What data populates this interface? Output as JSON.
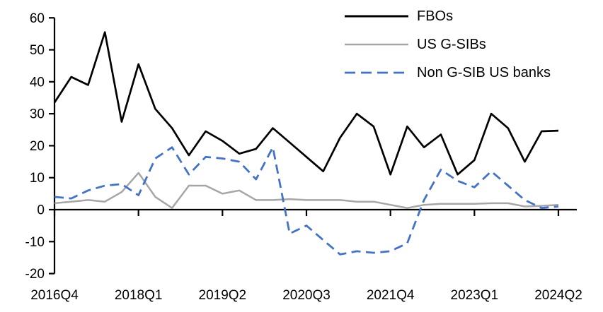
{
  "chart_data": {
    "type": "line",
    "title": "",
    "xlabel": "",
    "ylabel": "",
    "grid": false,
    "legend_position": "top-right",
    "ylim": [
      -20,
      60
    ],
    "y_ticks": [
      60,
      50,
      40,
      30,
      20,
      10,
      0,
      -10,
      -20
    ],
    "y_tick_labels": [
      "60",
      "50",
      "40",
      "30",
      "20",
      "10",
      "0",
      "-10",
      "-20"
    ],
    "x": [
      "2016Q4",
      "2017Q1",
      "2017Q2",
      "2017Q3",
      "2017Q4",
      "2018Q1",
      "2018Q2",
      "2018Q3",
      "2018Q4",
      "2019Q1",
      "2019Q2",
      "2019Q3",
      "2019Q4",
      "2020Q1",
      "2020Q2",
      "2020Q3",
      "2020Q4",
      "2021Q1",
      "2021Q2",
      "2021Q3",
      "2021Q4",
      "2022Q1",
      "2022Q2",
      "2022Q3",
      "2022Q4",
      "2023Q1",
      "2023Q2",
      "2023Q3",
      "2023Q4",
      "2024Q1",
      "2024Q2"
    ],
    "x_tick_indices": [
      0,
      5,
      10,
      15,
      20,
      25,
      30
    ],
    "x_tick_labels": [
      "2016Q4",
      "2018Q1",
      "2019Q2",
      "2020Q3",
      "2021Q4",
      "2023Q1",
      "2024Q2"
    ],
    "series": [
      {
        "name": "FBOs",
        "color": "#000000",
        "dash": "solid",
        "values": [
          33.5,
          41.5,
          39,
          55.5,
          27.5,
          45.5,
          31.5,
          25.5,
          17,
          24.5,
          21.5,
          17.5,
          19,
          25.5,
          21,
          16.5,
          12,
          22.5,
          30,
          26,
          11,
          26,
          19.5,
          23.5,
          11,
          15.5,
          30,
          25.5,
          15,
          24.5,
          24.7
        ]
      },
      {
        "name": "US G-SIBs",
        "color": "#a6a6a6",
        "dash": "solid",
        "values": [
          2,
          2.5,
          3,
          2.5,
          5.5,
          11.5,
          4,
          0.5,
          7.5,
          7.5,
          5,
          6,
          3,
          3,
          3.3,
          3,
          3,
          3,
          2.5,
          2.5,
          1.5,
          0.5,
          1.5,
          1.8,
          1.8,
          1.8,
          2,
          2,
          1,
          1.2,
          1.5
        ]
      },
      {
        "name": "Non G-SIB US banks",
        "color": "#4472c4",
        "dash": "dashed",
        "values": [
          4,
          3.5,
          6,
          7.5,
          8,
          4.5,
          16,
          19.5,
          11,
          16.5,
          16,
          15,
          9.5,
          19.5,
          -7.5,
          -5,
          -9.5,
          -14,
          -13,
          -13.5,
          -13,
          -10.5,
          3,
          12.5,
          9,
          7,
          12,
          7.5,
          3,
          0.5,
          1
        ]
      }
    ]
  }
}
